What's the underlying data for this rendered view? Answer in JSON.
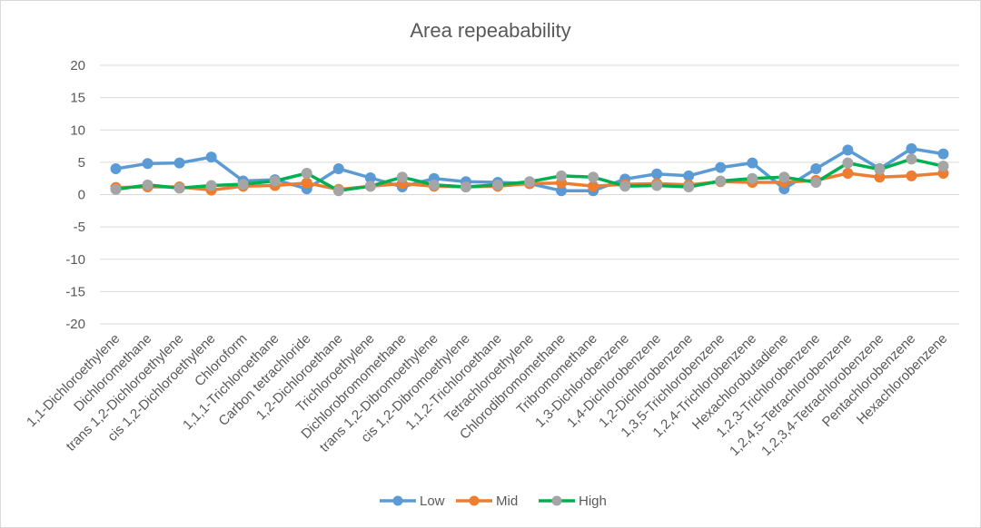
{
  "chart_data": {
    "type": "line",
    "title": "Area repeabability",
    "xlabel": "",
    "ylabel": "",
    "ylim": [
      -20,
      20
    ],
    "ytick_step": 5,
    "grid": true,
    "legend_position": "bottom",
    "categories": [
      "1,1-Dichloroethylene",
      "Dichloromethane",
      "trans 1,2-Dichloroethylene",
      "cis 1,2-Dichloroethylene",
      "Chloroform",
      "1,1,1-Trichloroethane",
      "Carbon tetrachloride",
      "1,2-Dichloroethane",
      "Trichloroethylene",
      "Dichlorobromomethane",
      "trans 1,2-Dibromoethylene",
      "cis 1,2-Dibromoethylene",
      "1,1,2-Trichloroethane",
      "Tetrachloroethylene",
      "Chlorodibromomethane",
      "Tribromomethane",
      "1,3-Dichlorobenzene",
      "1,4-Dichlorobenzene",
      "1,2-Dichlorobenzene",
      "1,3,5-Trichlorobenzene",
      "1,2,4-Trichlorobenzene",
      "Hexachlorobutadiene",
      "1,2,3-Trichlorobenzene",
      "1,2,4,5-Tetrachlorobenzene",
      "1,2,3,4-Tetrachlorobenzene",
      "Pentachlorobenzene",
      "Hexachlorobenzene"
    ],
    "series": [
      {
        "name": "Low",
        "color": "#5b9bd5",
        "marker_color": "#5b9bd5",
        "values": [
          4.0,
          4.8,
          4.9,
          5.8,
          2.1,
          2.3,
          0.9,
          4.0,
          2.6,
          1.2,
          2.5,
          2.0,
          1.9,
          1.7,
          0.6,
          0.6,
          2.4,
          3.2,
          2.9,
          4.2,
          4.9,
          0.9,
          4.0,
          6.9,
          4.0,
          7.1,
          6.3
        ]
      },
      {
        "name": "Mid",
        "color": "#ed7d31",
        "marker_color": "#ed7d31",
        "values": [
          1.1,
          1.2,
          1.2,
          0.7,
          1.3,
          1.4,
          1.8,
          0.8,
          1.3,
          1.7,
          1.3,
          1.2,
          1.3,
          1.7,
          1.8,
          1.3,
          1.6,
          1.7,
          1.5,
          2.0,
          1.9,
          1.9,
          2.2,
          3.3,
          2.7,
          2.9,
          3.3
        ]
      },
      {
        "name": "High",
        "color": "#00b050",
        "marker_color": "#a5a5a5",
        "values": [
          0.8,
          1.5,
          1.0,
          1.4,
          1.6,
          2.1,
          3.3,
          0.6,
          1.3,
          2.7,
          1.5,
          1.2,
          1.5,
          2.0,
          2.9,
          2.7,
          1.3,
          1.4,
          1.2,
          2.1,
          2.5,
          2.7,
          1.9,
          4.9,
          3.9,
          5.5,
          4.4
        ]
      }
    ]
  }
}
